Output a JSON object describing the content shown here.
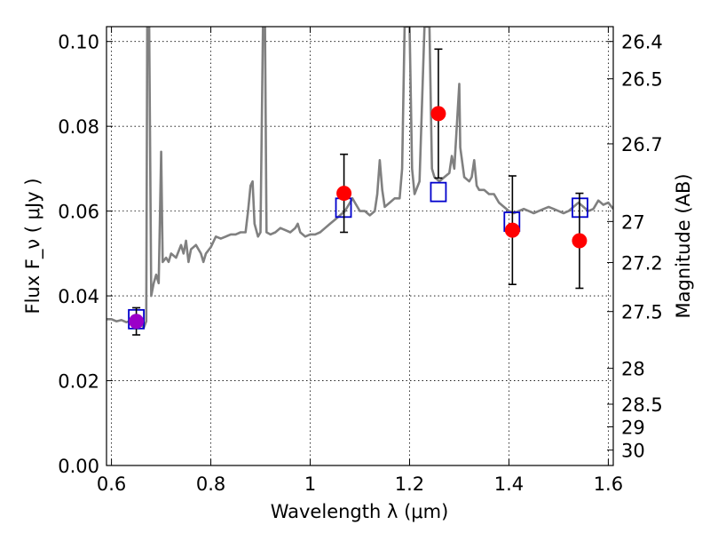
{
  "chart_data": {
    "type": "scatter",
    "xlabel": "Wavelength  λ (μm)",
    "ylabel": "Flux  F_ν  ( μJy )",
    "ylabel_right": "Magnitude (AB)",
    "xlim": [
      0.59,
      1.61
    ],
    "ylim": [
      0.0,
      0.1035
    ],
    "xticks": [
      "0.6",
      "0.8",
      "1",
      "1.2",
      "1.4",
      "1.6"
    ],
    "yticks": [
      "0.00",
      "0.02",
      "0.04",
      "0.06",
      "0.08",
      "0.10"
    ],
    "right_ticks": [
      "26.4",
      "26.5",
      "26.7",
      "27",
      "27.2",
      "27.5",
      "28",
      "28.5",
      "29",
      "30"
    ],
    "grid": true,
    "colors": {
      "spectrum": "#808080",
      "observed": "#ff0000",
      "observed_first": "#9b00c8",
      "model": "#0000cc",
      "errorbar": "#000000"
    },
    "series": [
      {
        "kind": "line",
        "points": [
          [
            0.59,
            0.0345
          ],
          [
            0.6,
            0.0345
          ],
          [
            0.61,
            0.034
          ],
          [
            0.62,
            0.0343
          ],
          [
            0.63,
            0.0338
          ],
          [
            0.64,
            0.0342
          ],
          [
            0.65,
            0.0337
          ],
          [
            0.66,
            0.0333
          ],
          [
            0.665,
            0.0325
          ],
          [
            0.67,
            0.034
          ],
          [
            0.672,
            0.1035
          ],
          [
            0.676,
            0.1035
          ],
          [
            0.68,
            0.04
          ],
          [
            0.685,
            0.043
          ],
          [
            0.69,
            0.045
          ],
          [
            0.695,
            0.043
          ],
          [
            0.7,
            0.074
          ],
          [
            0.703,
            0.048
          ],
          [
            0.71,
            0.049
          ],
          [
            0.715,
            0.048
          ],
          [
            0.72,
            0.05
          ],
          [
            0.73,
            0.049
          ],
          [
            0.74,
            0.052
          ],
          [
            0.745,
            0.05
          ],
          [
            0.75,
            0.053
          ],
          [
            0.755,
            0.048
          ],
          [
            0.76,
            0.051
          ],
          [
            0.77,
            0.052
          ],
          [
            0.78,
            0.05
          ],
          [
            0.785,
            0.048
          ],
          [
            0.79,
            0.05
          ],
          [
            0.8,
            0.0515
          ],
          [
            0.81,
            0.054
          ],
          [
            0.82,
            0.0535
          ],
          [
            0.83,
            0.054
          ],
          [
            0.84,
            0.0545
          ],
          [
            0.85,
            0.0545
          ],
          [
            0.86,
            0.055
          ],
          [
            0.87,
            0.055
          ],
          [
            0.875,
            0.06
          ],
          [
            0.88,
            0.066
          ],
          [
            0.884,
            0.067
          ],
          [
            0.888,
            0.057
          ],
          [
            0.895,
            0.054
          ],
          [
            0.9,
            0.055
          ],
          [
            0.905,
            0.1035
          ],
          [
            0.909,
            0.1035
          ],
          [
            0.912,
            0.055
          ],
          [
            0.92,
            0.0545
          ],
          [
            0.93,
            0.055
          ],
          [
            0.94,
            0.056
          ],
          [
            0.95,
            0.0555
          ],
          [
            0.96,
            0.055
          ],
          [
            0.97,
            0.056
          ],
          [
            0.975,
            0.057
          ],
          [
            0.98,
            0.055
          ],
          [
            0.99,
            0.054
          ],
          [
            1.0,
            0.0545
          ],
          [
            1.01,
            0.0545
          ],
          [
            1.02,
            0.055
          ],
          [
            1.03,
            0.056
          ],
          [
            1.04,
            0.057
          ],
          [
            1.05,
            0.058
          ],
          [
            1.06,
            0.059
          ],
          [
            1.07,
            0.06
          ],
          [
            1.08,
            0.062
          ],
          [
            1.085,
            0.063
          ],
          [
            1.09,
            0.062
          ],
          [
            1.1,
            0.06
          ],
          [
            1.11,
            0.06
          ],
          [
            1.12,
            0.059
          ],
          [
            1.13,
            0.06
          ],
          [
            1.135,
            0.064
          ],
          [
            1.14,
            0.072
          ],
          [
            1.145,
            0.065
          ],
          [
            1.15,
            0.061
          ],
          [
            1.16,
            0.062
          ],
          [
            1.17,
            0.063
          ],
          [
            1.18,
            0.063
          ],
          [
            1.185,
            0.07
          ],
          [
            1.19,
            0.1035
          ],
          [
            1.2,
            0.1035
          ],
          [
            1.205,
            0.07
          ],
          [
            1.21,
            0.064
          ],
          [
            1.22,
            0.067
          ],
          [
            1.23,
            0.1035
          ],
          [
            1.24,
            0.1035
          ],
          [
            1.245,
            0.07
          ],
          [
            1.25,
            0.068
          ],
          [
            1.26,
            0.067
          ],
          [
            1.27,
            0.068
          ],
          [
            1.28,
            0.069
          ],
          [
            1.285,
            0.073
          ],
          [
            1.29,
            0.07
          ],
          [
            1.295,
            0.08
          ],
          [
            1.3,
            0.09
          ],
          [
            1.302,
            0.075
          ],
          [
            1.31,
            0.068
          ],
          [
            1.32,
            0.067
          ],
          [
            1.325,
            0.068
          ],
          [
            1.33,
            0.072
          ],
          [
            1.335,
            0.066
          ],
          [
            1.34,
            0.065
          ],
          [
            1.35,
            0.065
          ],
          [
            1.36,
            0.064
          ],
          [
            1.37,
            0.064
          ],
          [
            1.38,
            0.062
          ],
          [
            1.39,
            0.061
          ],
          [
            1.4,
            0.06
          ],
          [
            1.41,
            0.0595
          ],
          [
            1.42,
            0.06
          ],
          [
            1.43,
            0.0605
          ],
          [
            1.44,
            0.06
          ],
          [
            1.45,
            0.0595
          ],
          [
            1.46,
            0.06
          ],
          [
            1.47,
            0.0605
          ],
          [
            1.48,
            0.061
          ],
          [
            1.49,
            0.0605
          ],
          [
            1.5,
            0.06
          ],
          [
            1.51,
            0.0595
          ],
          [
            1.52,
            0.06
          ],
          [
            1.53,
            0.061
          ],
          [
            1.54,
            0.062
          ],
          [
            1.55,
            0.061
          ],
          [
            1.56,
            0.06
          ],
          [
            1.57,
            0.0605
          ],
          [
            1.58,
            0.0625
          ],
          [
            1.59,
            0.0615
          ],
          [
            1.6,
            0.062
          ],
          [
            1.61,
            0.0605
          ]
        ]
      },
      {
        "kind": "observed",
        "points": [
          {
            "x": 0.65,
            "y": 0.034,
            "yerr": 0.0032
          },
          {
            "x": 1.068,
            "y": 0.0642,
            "yerr": 0.0092
          },
          {
            "x": 1.258,
            "y": 0.083,
            "yerr": 0.0152
          },
          {
            "x": 1.407,
            "y": 0.0555,
            "yerr": 0.0128
          },
          {
            "x": 1.542,
            "y": 0.053,
            "yerr": 0.0112
          }
        ]
      },
      {
        "kind": "model",
        "points": [
          {
            "x": 0.65,
            "y": 0.0345
          },
          {
            "x": 1.067,
            "y": 0.0608
          },
          {
            "x": 1.258,
            "y": 0.0645
          },
          {
            "x": 1.406,
            "y": 0.0575
          },
          {
            "x": 1.543,
            "y": 0.0608
          }
        ]
      }
    ]
  }
}
